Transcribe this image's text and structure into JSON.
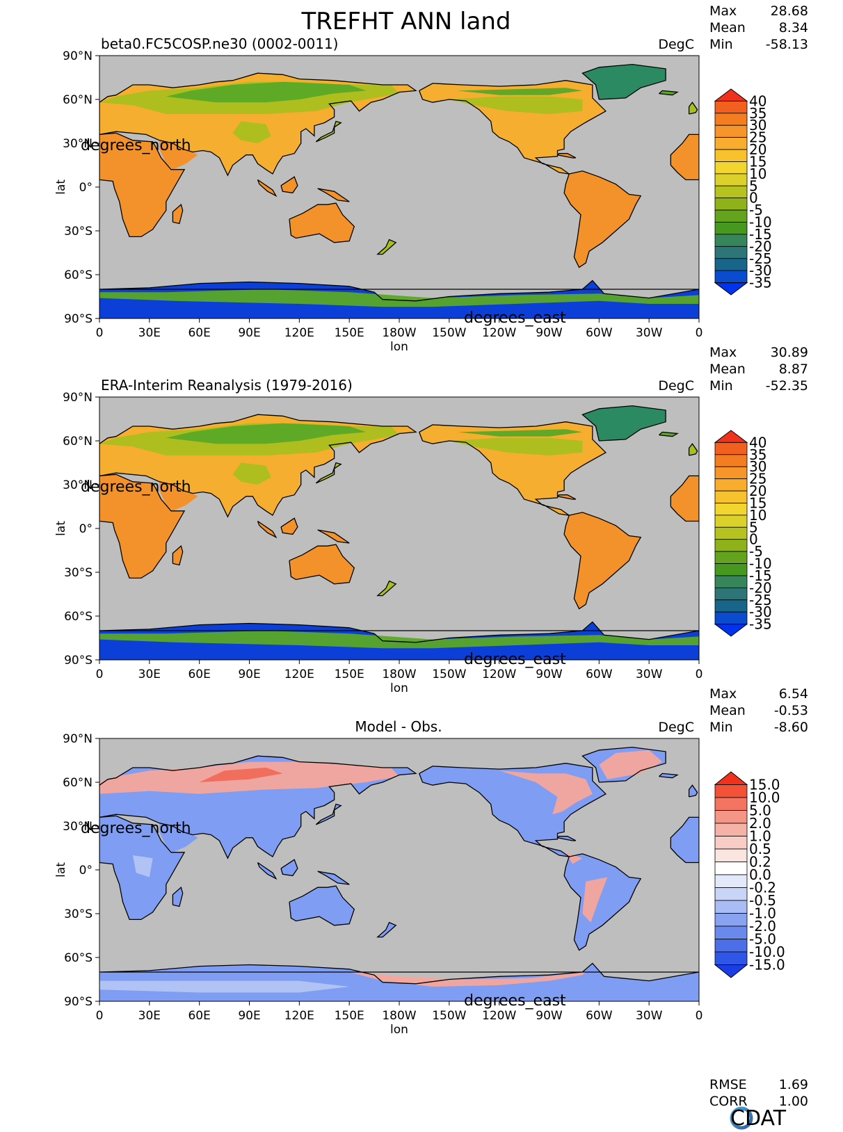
{
  "figure": {
    "title": "TREFHT ANN land",
    "logo_text": "CDAT",
    "footer_stats": {
      "rmse_label": "RMSE",
      "rmse_value": "1.69",
      "corr_label": "CORR",
      "corr_value": "1.00"
    }
  },
  "colors": {
    "ocean": "#bebebe",
    "land_cold": "#0b3fd8",
    "land_cool": "#2b8a62",
    "land_mid": "#5aa827",
    "land_mild": "#a9bf1e",
    "land_warm": "#f5ae2f",
    "land_hot": "#f3922a",
    "diff_pos": "#f5a69b",
    "diff_pos_strong": "#f06a58",
    "diff_neg": "#7f9df2",
    "diff_neg_light": "#b7c8f5"
  },
  "chart_data": [
    {
      "type": "heatmap",
      "title": "beta0.FC5COSP.ne30 (0002-0011)",
      "units": "DegC",
      "stats": [
        {
          "label": "Max",
          "value": "28.68"
        },
        {
          "label": "Mean",
          "value": "8.34"
        },
        {
          "label": "Min",
          "value": "-58.13"
        }
      ],
      "xlabel": "lon",
      "ylabel": "lat",
      "x_units_label": "degrees_east",
      "y_units_label": "degrees_north",
      "xticks": [
        "0",
        "30E",
        "60E",
        "90E",
        "120E",
        "150E",
        "180W",
        "150W",
        "120W",
        "90W",
        "60W",
        "30W",
        "0"
      ],
      "yticks": [
        "90°N",
        "60°N",
        "30°N",
        "0°",
        "30°S",
        "60°S",
        "90°S"
      ],
      "xlim": [
        0,
        360
      ],
      "ylim": [
        -90,
        90
      ],
      "colorbar": {
        "labels": [
          "40",
          "35",
          "30",
          "25",
          "20",
          "15",
          "10",
          "5",
          "0",
          "-5",
          "-10",
          "-15",
          "-20",
          "-25",
          "-30",
          "-35"
        ],
        "colors": [
          "#f0311c",
          "#f1601f",
          "#f47d22",
          "#f6962a",
          "#f8ad2f",
          "#f8c22f",
          "#f2d52e",
          "#dcd02b",
          "#b5c21f",
          "#8fb21b",
          "#63a31e",
          "#46981f",
          "#37865b",
          "#2d7576",
          "#176588",
          "#0b4ccf",
          "#0033ee"
        ]
      }
    },
    {
      "type": "heatmap",
      "title": "ERA-Interim Reanalysis (1979-2016)",
      "units": "DegC",
      "stats": [
        {
          "label": "Max",
          "value": "30.89"
        },
        {
          "label": "Mean",
          "value": "8.87"
        },
        {
          "label": "Min",
          "value": "-52.35"
        }
      ],
      "xlabel": "lon",
      "ylabel": "lat",
      "x_units_label": "degrees_east",
      "y_units_label": "degrees_north",
      "xticks": [
        "0",
        "30E",
        "60E",
        "90E",
        "120E",
        "150E",
        "180W",
        "150W",
        "120W",
        "90W",
        "60W",
        "30W",
        "0"
      ],
      "yticks": [
        "90°N",
        "60°N",
        "30°N",
        "0°",
        "30°S",
        "60°S",
        "90°S"
      ],
      "xlim": [
        0,
        360
      ],
      "ylim": [
        -90,
        90
      ],
      "colorbar": {
        "labels": [
          "40",
          "35",
          "30",
          "25",
          "20",
          "15",
          "10",
          "5",
          "0",
          "-5",
          "-10",
          "-15",
          "-20",
          "-25",
          "-30",
          "-35"
        ],
        "colors": [
          "#f0311c",
          "#f1601f",
          "#f47d22",
          "#f6962a",
          "#f8ad2f",
          "#f8c22f",
          "#f2d52e",
          "#dcd02b",
          "#b5c21f",
          "#8fb21b",
          "#63a31e",
          "#46981f",
          "#37865b",
          "#2d7576",
          "#176588",
          "#0b4ccf",
          "#0033ee"
        ]
      }
    },
    {
      "type": "heatmap",
      "title": "Model - Obs.",
      "units": "DegC",
      "stats": [
        {
          "label": "Max",
          "value": "6.54"
        },
        {
          "label": "Mean",
          "value": "-0.53"
        },
        {
          "label": "Min",
          "value": "-8.60"
        }
      ],
      "xlabel": "lon",
      "ylabel": "lat",
      "x_units_label": "degrees_east",
      "y_units_label": "degrees_north",
      "xticks": [
        "0",
        "30E",
        "60E",
        "90E",
        "120E",
        "150E",
        "180W",
        "150W",
        "120W",
        "90W",
        "60W",
        "30W",
        "0"
      ],
      "yticks": [
        "90°N",
        "60°N",
        "30°N",
        "0°",
        "30°S",
        "60°S",
        "90°S"
      ],
      "xlim": [
        0,
        360
      ],
      "ylim": [
        -90,
        90
      ],
      "colorbar": {
        "labels": [
          "15.0",
          "10.0",
          "5.0",
          "2.0",
          "1.0",
          "0.5",
          "0.2",
          "0.0",
          "-0.2",
          "-0.5",
          "-1.0",
          "-2.0",
          "-5.0",
          "-10.0",
          "-15.0"
        ],
        "colors": [
          "#f0311c",
          "#f35238",
          "#f47462",
          "#f59585",
          "#f6b2a6",
          "#f8cdc5",
          "#fbe5e1",
          "#ffffff",
          "#e3e9fb",
          "#c8d4f8",
          "#a9bcf4",
          "#8aa3f0",
          "#6a89ec",
          "#4c6fe9",
          "#2f56e6",
          "#1a3ee5"
        ]
      }
    }
  ]
}
